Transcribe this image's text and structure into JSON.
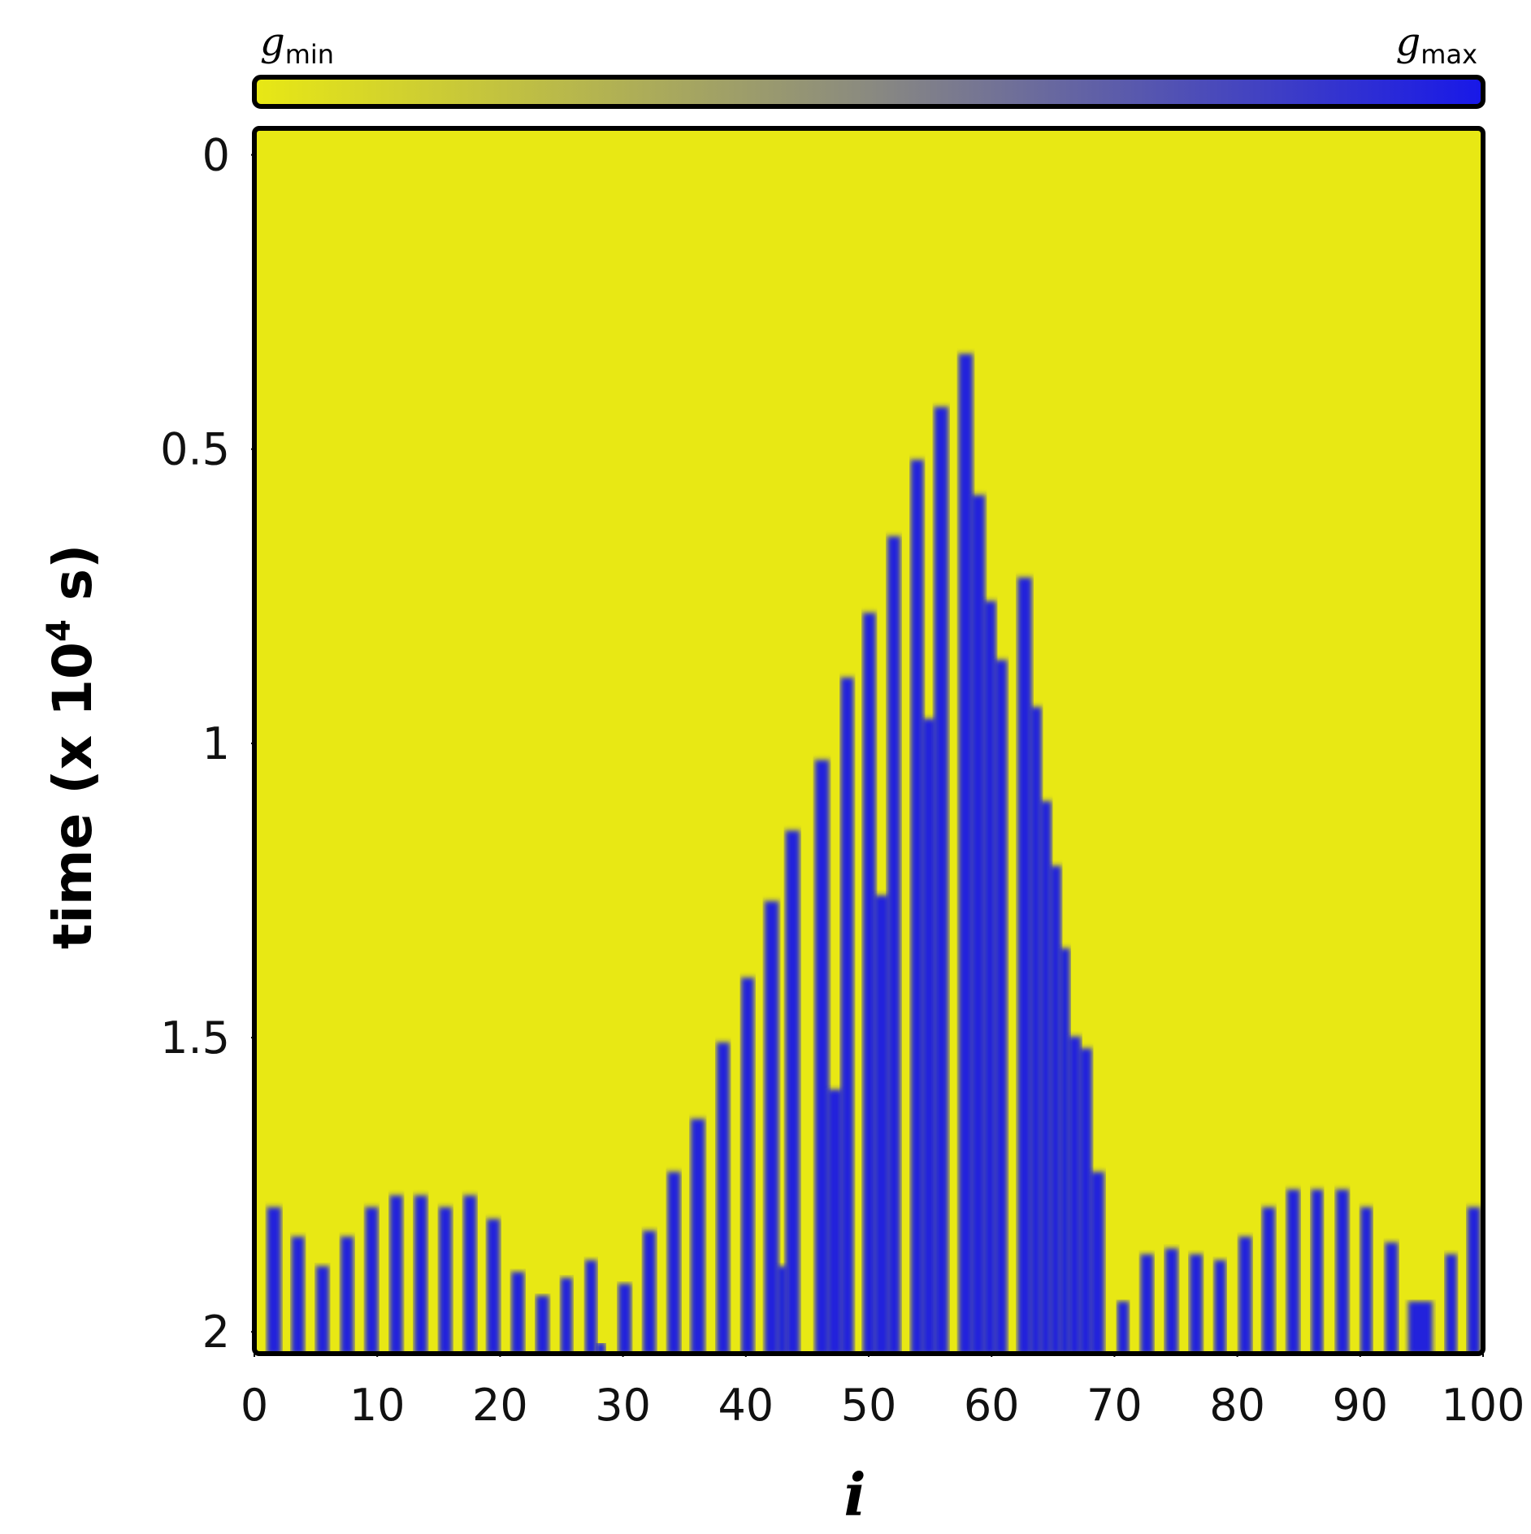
{
  "chart_data": {
    "type": "heatmap",
    "xlabel": "i",
    "ylabel": {
      "text": "time (x 10",
      "sup": "4",
      "tail": " s)"
    },
    "colorbar": {
      "min_label": {
        "base": "g",
        "sub": "min"
      },
      "max_label": {
        "base": "g",
        "sub": "max"
      },
      "colors": [
        "#e8e814",
        "#8a8a80",
        "#1818e8"
      ]
    },
    "background_color": "#e8e814",
    "color": "#2024dc",
    "xlim": [
      0,
      100
    ],
    "ylim": [
      -0.045,
      2.037
    ],
    "y_inverted": true,
    "xticks": [
      0,
      10,
      20,
      30,
      40,
      50,
      60,
      70,
      80,
      90,
      100
    ],
    "yticks": [
      0,
      0.5,
      1,
      1.5,
      2
    ],
    "bands": [
      {
        "i": [
          1.1,
          2.1
        ],
        "onset": 1.79
      },
      {
        "i": [
          3.1,
          4.0
        ],
        "onset": 1.84
      },
      {
        "i": [
          5.1,
          6.0
        ],
        "onset": 1.89
      },
      {
        "i": [
          7.1,
          8.0
        ],
        "onset": 1.84
      },
      {
        "i": [
          9.1,
          10.0
        ],
        "onset": 1.79
      },
      {
        "i": [
          11.1,
          12.0
        ],
        "onset": 1.77
      },
      {
        "i": [
          13.1,
          14.0
        ],
        "onset": 1.77
      },
      {
        "i": [
          15.1,
          16.0
        ],
        "onset": 1.79
      },
      {
        "i": [
          17.1,
          18.0
        ],
        "onset": 1.77
      },
      {
        "i": [
          19.0,
          19.9
        ],
        "onset": 1.81
      },
      {
        "i": [
          21.0,
          21.9
        ],
        "onset": 1.9
      },
      {
        "i": [
          23.0,
          23.9
        ],
        "onset": 1.94
      },
      {
        "i": [
          25.0,
          25.8
        ],
        "onset": 1.91
      },
      {
        "i": [
          27.0,
          27.8
        ],
        "onset": 1.88
      },
      {
        "i": [
          27.9,
          28.5
        ],
        "onset": 2.02
      },
      {
        "i": [
          29.7,
          30.6
        ],
        "onset": 1.92
      },
      {
        "i": [
          31.7,
          32.6
        ],
        "onset": 1.83
      },
      {
        "i": [
          33.7,
          34.6
        ],
        "onset": 1.73
      },
      {
        "i": [
          35.6,
          36.6
        ],
        "onset": 1.64
      },
      {
        "i": [
          37.7,
          38.6
        ],
        "onset": 1.51
      },
      {
        "i": [
          39.7,
          40.6
        ],
        "onset": 1.4
      },
      {
        "i": [
          41.6,
          42.6
        ],
        "onset": 1.27
      },
      {
        "i": [
          42.6,
          43.3
        ],
        "onset": 1.89
      },
      {
        "i": [
          43.3,
          44.3
        ],
        "onset": 1.15
      },
      {
        "i": [
          45.7,
          46.7
        ],
        "onset": 1.03
      },
      {
        "i": [
          46.7,
          47.8
        ],
        "onset": 1.59
      },
      {
        "i": [
          47.8,
          48.7
        ],
        "onset": 0.89
      },
      {
        "i": [
          49.6,
          50.5
        ],
        "onset": 0.78
      },
      {
        "i": [
          50.5,
          51.6
        ],
        "onset": 1.26
      },
      {
        "i": [
          51.6,
          52.5
        ],
        "onset": 0.65
      },
      {
        "i": [
          53.5,
          54.4
        ],
        "onset": 0.52
      },
      {
        "i": [
          54.4,
          55.4
        ],
        "onset": 0.96
      },
      {
        "i": [
          55.4,
          56.4
        ],
        "onset": 0.43
      },
      {
        "i": [
          57.4,
          58.4
        ],
        "onset": 0.34
      },
      {
        "i": [
          58.4,
          59.4
        ],
        "onset": 0.58
      },
      {
        "i": [
          59.4,
          60.3
        ],
        "onset": 0.76
      },
      {
        "i": [
          60.3,
          61.2
        ],
        "onset": 0.86
      },
      {
        "i": [
          62.2,
          63.2
        ],
        "onset": 0.72
      },
      {
        "i": [
          63.2,
          64.0
        ],
        "onset": 0.94
      },
      {
        "i": [
          64.0,
          64.8
        ],
        "onset": 1.1
      },
      {
        "i": [
          64.8,
          65.6
        ],
        "onset": 1.21
      },
      {
        "i": [
          65.6,
          66.3
        ],
        "onset": 1.35
      },
      {
        "i": [
          66.3,
          67.2
        ],
        "onset": 1.5
      },
      {
        "i": [
          67.2,
          68.1
        ],
        "onset": 1.52
      },
      {
        "i": [
          68.1,
          69.1
        ],
        "onset": 1.73
      },
      {
        "i": [
          70.3,
          71.1
        ],
        "onset": 1.95
      },
      {
        "i": [
          72.2,
          73.1
        ],
        "onset": 1.87
      },
      {
        "i": [
          74.2,
          75.1
        ],
        "onset": 1.86
      },
      {
        "i": [
          76.2,
          77.1
        ],
        "onset": 1.87
      },
      {
        "i": [
          78.2,
          79.0
        ],
        "onset": 1.88
      },
      {
        "i": [
          80.2,
          81.1
        ],
        "onset": 1.84
      },
      {
        "i": [
          82.1,
          83.0
        ],
        "onset": 1.79
      },
      {
        "i": [
          84.1,
          85.0
        ],
        "onset": 1.76
      },
      {
        "i": [
          86.1,
          86.9
        ],
        "onset": 1.76
      },
      {
        "i": [
          88.1,
          89.0
        ],
        "onset": 1.76
      },
      {
        "i": [
          90.1,
          90.9
        ],
        "onset": 1.79
      },
      {
        "i": [
          92.1,
          93.0
        ],
        "onset": 1.85
      },
      {
        "i": [
          94.0,
          95.8
        ],
        "onset": 1.95
      },
      {
        "i": [
          97.0,
          97.8
        ],
        "onset": 1.87
      },
      {
        "i": [
          98.8,
          99.7
        ],
        "onset": 1.79
      }
    ]
  }
}
